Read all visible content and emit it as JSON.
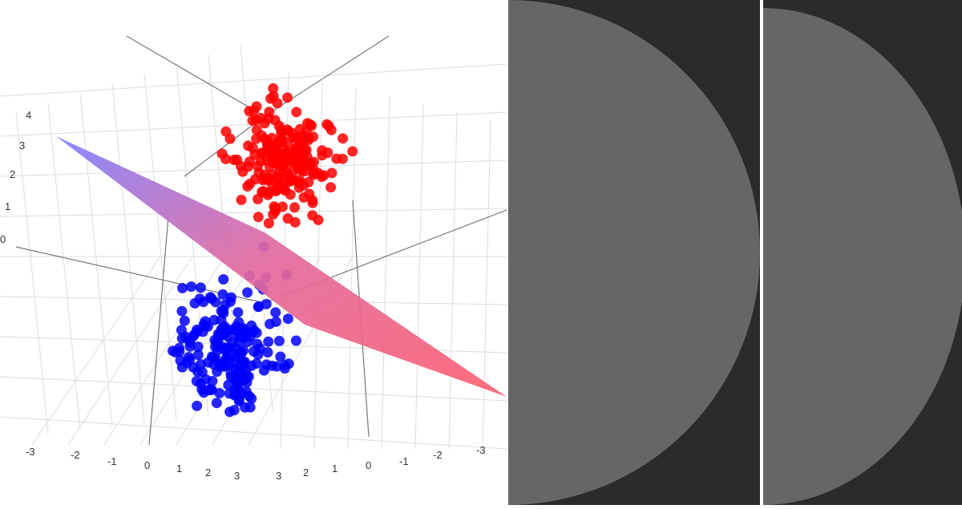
{
  "chart_data": {
    "type": "scatter3d",
    "title": "",
    "axes": {
      "axis_a": {
        "label": "",
        "ticks": [
          "-3",
          "-2",
          "-1",
          "0",
          "1",
          "2",
          "3"
        ]
      },
      "axis_b": {
        "label": "",
        "ticks": [
          "3",
          "2",
          "1",
          "0",
          "-1",
          "-2",
          "-3"
        ]
      },
      "axis_z": {
        "label": "",
        "ticks": [
          "0",
          "1",
          "2",
          "3",
          "4"
        ]
      }
    },
    "grid": true,
    "series": [
      {
        "color": "#ff0000",
        "point_count": 200
      },
      {
        "color": "#0000ff",
        "point_count": 200
      }
    ],
    "separating_plane": {
      "gradient": [
        "#8080ff",
        "#ff6070"
      ]
    }
  },
  "panels": {
    "background": "#2b2b2b",
    "disc_color": "#666666"
  }
}
